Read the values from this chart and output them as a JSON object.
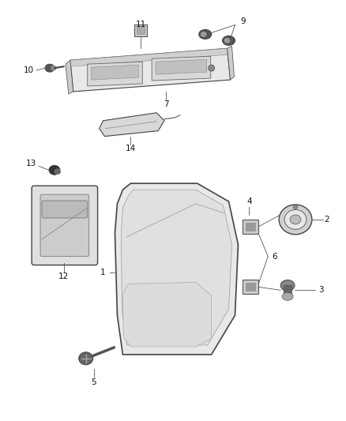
{
  "background_color": "#ffffff",
  "figure_width": 4.38,
  "figure_height": 5.33,
  "dpi": 100,
  "line_color": "#555555",
  "dark_color": "#222222",
  "label_fontsize": 7.5
}
